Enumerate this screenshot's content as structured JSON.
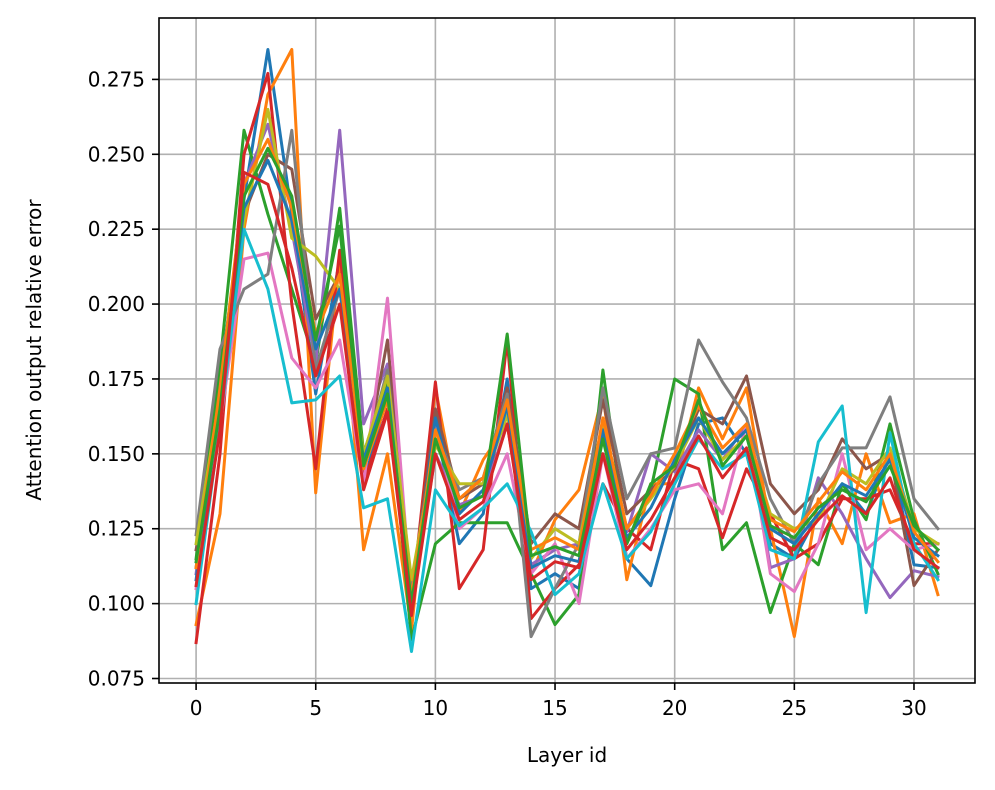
{
  "chart_data": {
    "type": "line",
    "title": "",
    "xlabel": "Layer id",
    "ylabel": "Attention output relative error",
    "xlim": [
      -1.55,
      32.55
    ],
    "ylim": [
      0.0735,
      0.2955
    ],
    "xticks": [
      0,
      5,
      10,
      15,
      20,
      25,
      30
    ],
    "xtick_labels": [
      "0",
      "5",
      "10",
      "15",
      "20",
      "25",
      "30"
    ],
    "yticks": [
      0.075,
      0.1,
      0.125,
      0.15,
      0.175,
      0.2,
      0.225,
      0.25,
      0.275
    ],
    "ytick_labels": [
      "0.075",
      "0.100",
      "0.125",
      "0.150",
      "0.175",
      "0.200",
      "0.225",
      "0.250",
      "0.275"
    ],
    "grid": true,
    "legend": "none",
    "x": [
      0,
      1,
      2,
      3,
      4,
      5,
      6,
      7,
      8,
      9,
      10,
      11,
      12,
      13,
      14,
      15,
      16,
      17,
      18,
      19,
      20,
      21,
      22,
      23,
      24,
      25,
      26,
      27,
      28,
      29,
      30,
      31
    ],
    "series": [
      {
        "color": "#1f77b4",
        "values": [
          0.112,
          0.175,
          0.235,
          0.285,
          0.23,
          0.17,
          0.215,
          0.14,
          0.17,
          0.095,
          0.16,
          0.12,
          0.13,
          0.175,
          0.105,
          0.11,
          0.105,
          0.16,
          0.115,
          0.106,
          0.135,
          0.16,
          0.162,
          0.15,
          0.12,
          0.115,
          0.13,
          0.14,
          0.13,
          0.15,
          0.113,
          0.112
        ]
      },
      {
        "color": "#ff7f0e",
        "values": [
          0.093,
          0.13,
          0.225,
          0.27,
          0.285,
          0.137,
          0.215,
          0.118,
          0.15,
          0.091,
          0.172,
          0.13,
          0.148,
          0.16,
          0.11,
          0.128,
          0.138,
          0.17,
          0.108,
          0.14,
          0.14,
          0.172,
          0.155,
          0.172,
          0.125,
          0.089,
          0.135,
          0.12,
          0.15,
          0.127,
          0.13,
          0.103
        ]
      },
      {
        "color": "#2ca02c",
        "values": [
          0.115,
          0.18,
          0.258,
          0.23,
          0.205,
          0.18,
          0.232,
          0.15,
          0.175,
          0.088,
          0.12,
          0.127,
          0.127,
          0.127,
          0.11,
          0.093,
          0.103,
          0.178,
          0.12,
          0.138,
          0.175,
          0.17,
          0.118,
          0.127,
          0.097,
          0.12,
          0.113,
          0.14,
          0.128,
          0.16,
          0.128,
          0.11
        ]
      },
      {
        "color": "#d62728",
        "values": [
          0.087,
          0.15,
          0.25,
          0.277,
          0.2,
          0.145,
          0.218,
          0.14,
          0.165,
          0.1,
          0.174,
          0.105,
          0.118,
          0.188,
          0.095,
          0.105,
          0.113,
          0.14,
          0.125,
          0.118,
          0.148,
          0.145,
          0.122,
          0.145,
          0.13,
          0.115,
          0.12,
          0.135,
          0.135,
          0.138,
          0.12,
          0.12
        ]
      },
      {
        "color": "#9467bd",
        "values": [
          0.11,
          0.17,
          0.24,
          0.26,
          0.225,
          0.18,
          0.258,
          0.16,
          0.18,
          0.098,
          0.15,
          0.133,
          0.136,
          0.16,
          0.113,
          0.118,
          0.12,
          0.15,
          0.124,
          0.15,
          0.144,
          0.158,
          0.148,
          0.16,
          0.112,
          0.115,
          0.142,
          0.13,
          0.115,
          0.102,
          0.111,
          0.109
        ]
      },
      {
        "color": "#8c564b",
        "values": [
          0.118,
          0.16,
          0.23,
          0.25,
          0.245,
          0.195,
          0.21,
          0.145,
          0.188,
          0.102,
          0.165,
          0.135,
          0.14,
          0.172,
          0.12,
          0.13,
          0.125,
          0.168,
          0.13,
          0.138,
          0.145,
          0.165,
          0.16,
          0.176,
          0.14,
          0.13,
          0.138,
          0.155,
          0.145,
          0.15,
          0.106,
          0.118
        ]
      },
      {
        "color": "#e377c2",
        "values": [
          0.105,
          0.16,
          0.215,
          0.217,
          0.182,
          0.172,
          0.188,
          0.14,
          0.202,
          0.1,
          0.16,
          0.125,
          0.132,
          0.15,
          0.11,
          0.12,
          0.1,
          0.15,
          0.115,
          0.125,
          0.138,
          0.14,
          0.13,
          0.16,
          0.11,
          0.104,
          0.12,
          0.15,
          0.118,
          0.125,
          0.118,
          0.12
        ]
      },
      {
        "color": "#7f7f7f",
        "values": [
          0.123,
          0.185,
          0.205,
          0.21,
          0.258,
          0.178,
          0.205,
          0.148,
          0.178,
          0.105,
          0.158,
          0.138,
          0.142,
          0.17,
          0.089,
          0.105,
          0.12,
          0.172,
          0.135,
          0.15,
          0.152,
          0.188,
          0.174,
          0.162,
          0.135,
          0.12,
          0.14,
          0.152,
          0.152,
          0.169,
          0.135,
          0.125
        ]
      },
      {
        "color": "#bcbd22",
        "values": [
          0.12,
          0.17,
          0.228,
          0.265,
          0.222,
          0.216,
          0.205,
          0.15,
          0.176,
          0.108,
          0.153,
          0.14,
          0.14,
          0.163,
          0.115,
          0.125,
          0.12,
          0.16,
          0.125,
          0.135,
          0.146,
          0.162,
          0.148,
          0.156,
          0.13,
          0.125,
          0.128,
          0.145,
          0.14,
          0.152,
          0.125,
          0.12
        ]
      },
      {
        "color": "#17becf",
        "values": [
          0.1,
          0.16,
          0.225,
          0.205,
          0.167,
          0.168,
          0.176,
          0.132,
          0.135,
          0.084,
          0.138,
          0.126,
          0.132,
          0.14,
          0.124,
          0.103,
          0.11,
          0.14,
          0.115,
          0.124,
          0.14,
          0.155,
          0.145,
          0.15,
          0.118,
          0.115,
          0.154,
          0.166,
          0.097,
          0.157,
          0.12,
          0.108
        ]
      },
      {
        "color": "#1f77b4",
        "values": [
          0.108,
          0.168,
          0.232,
          0.248,
          0.228,
          0.185,
          0.205,
          0.148,
          0.172,
          0.098,
          0.162,
          0.13,
          0.138,
          0.166,
          0.112,
          0.116,
          0.114,
          0.158,
          0.122,
          0.132,
          0.148,
          0.162,
          0.15,
          0.158,
          0.125,
          0.12,
          0.13,
          0.14,
          0.136,
          0.148,
          0.122,
          0.116
        ]
      },
      {
        "color": "#ff7f0e",
        "values": [
          0.112,
          0.172,
          0.24,
          0.255,
          0.232,
          0.19,
          0.21,
          0.145,
          0.168,
          0.102,
          0.158,
          0.135,
          0.142,
          0.168,
          0.118,
          0.122,
          0.118,
          0.162,
          0.125,
          0.136,
          0.15,
          0.166,
          0.152,
          0.16,
          0.128,
          0.124,
          0.134,
          0.144,
          0.138,
          0.15,
          0.124,
          0.114
        ]
      },
      {
        "color": "#2ca02c",
        "values": [
          0.114,
          0.165,
          0.236,
          0.252,
          0.236,
          0.188,
          0.226,
          0.146,
          0.17,
          0.1,
          0.155,
          0.132,
          0.136,
          0.19,
          0.116,
          0.119,
          0.116,
          0.155,
          0.12,
          0.14,
          0.146,
          0.168,
          0.146,
          0.156,
          0.126,
          0.122,
          0.132,
          0.138,
          0.134,
          0.146,
          0.126,
          0.118
        ]
      },
      {
        "color": "#d62728",
        "values": [
          0.106,
          0.158,
          0.244,
          0.24,
          0.212,
          0.176,
          0.2,
          0.138,
          0.164,
          0.096,
          0.15,
          0.128,
          0.134,
          0.16,
          0.108,
          0.114,
          0.112,
          0.15,
          0.118,
          0.128,
          0.142,
          0.156,
          0.142,
          0.152,
          0.122,
          0.118,
          0.128,
          0.136,
          0.13,
          0.142,
          0.118,
          0.112
        ]
      }
    ]
  }
}
